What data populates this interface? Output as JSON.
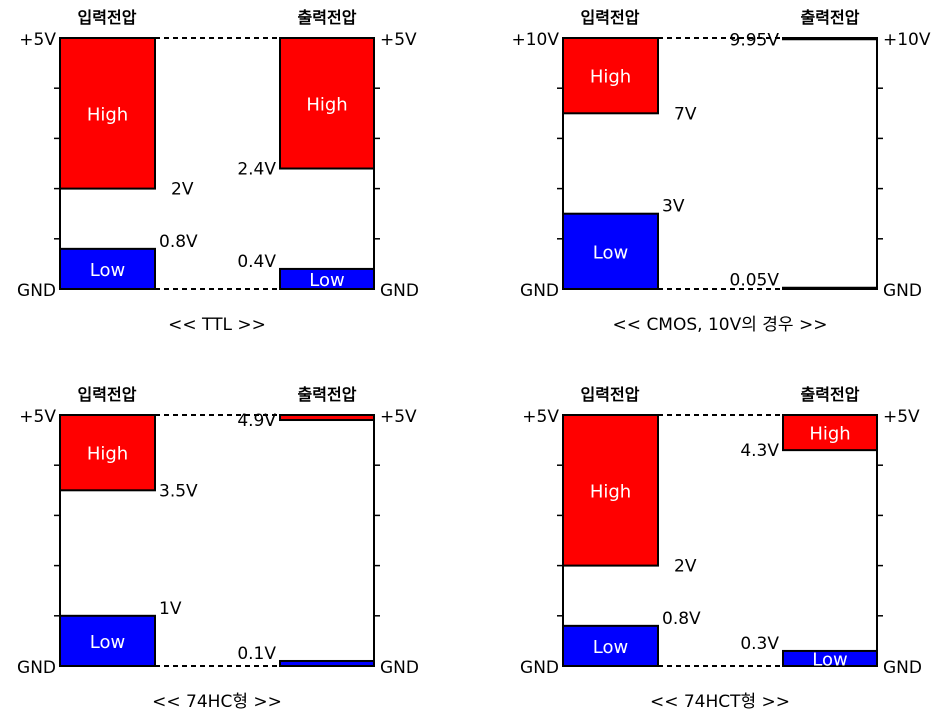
{
  "colors": {
    "high": "#ff0000",
    "low": "#0000ff",
    "line": "#000000",
    "background": "#ffffff"
  },
  "panels": [
    {
      "caption": "<< TTL >>",
      "input_header": "입력전압",
      "output_header": "출력전압",
      "top_rail": "+5V",
      "ground": "GND",
      "vmax": 5,
      "input": {
        "high_min": 2,
        "high_min_label": "2V",
        "low_max": 0.8,
        "low_max_label": "0.8V",
        "high_text": "High",
        "low_text": "Low"
      },
      "output": {
        "high_min": 2.4,
        "high_min_label": "2.4V",
        "low_max": 0.4,
        "low_max_label": "0.4V",
        "high_text": "High",
        "low_text": "Low"
      }
    },
    {
      "caption": "<< CMOS, 10V의 경우 >>",
      "input_header": "입력전압",
      "output_header": "출력전압",
      "top_rail": "+10V",
      "ground": "GND",
      "vmax": 10,
      "input": {
        "high_min": 7,
        "high_min_label": "7V",
        "low_max": 3,
        "low_max_label": "3V",
        "high_text": "High",
        "low_text": "Low"
      },
      "output": {
        "high_min": 9.95,
        "high_min_label": "9.95V",
        "low_max": 0.05,
        "low_max_label": "0.05V",
        "high_text": "",
        "low_text": ""
      }
    },
    {
      "caption": "<< 74HC형 >>",
      "input_header": "입력전압",
      "output_header": "출력전압",
      "top_rail": "+5V",
      "ground": "GND",
      "vmax": 5,
      "input": {
        "high_min": 3.5,
        "high_min_label": "3.5V",
        "low_max": 1,
        "low_max_label": "1V",
        "high_text": "High",
        "low_text": "Low"
      },
      "output": {
        "high_min": 4.9,
        "high_min_label": "4.9V",
        "low_max": 0.1,
        "low_max_label": "0.1V",
        "high_text": "",
        "low_text": ""
      }
    },
    {
      "caption": "<< 74HCT형 >>",
      "input_header": "입력전압",
      "output_header": "출력전압",
      "top_rail": "+5V",
      "ground": "GND",
      "vmax": 5,
      "input": {
        "high_min": 2,
        "high_min_label": "2V",
        "low_max": 0.8,
        "low_max_label": "0.8V",
        "high_text": "High",
        "low_text": "Low"
      },
      "output": {
        "high_min": 4.3,
        "high_min_label": "4.3V",
        "low_max": 0.3,
        "low_max_label": "0.3V",
        "high_text": "High",
        "low_text": "Low"
      }
    }
  ]
}
